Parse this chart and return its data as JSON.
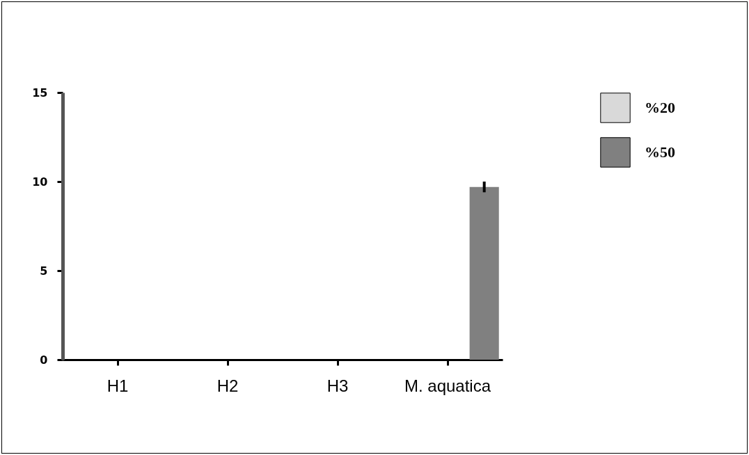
{
  "chart_data": {
    "type": "bar",
    "categories": [
      "H1",
      "H2",
      "H3",
      "M. aquatica"
    ],
    "series": [
      {
        "name": "%20",
        "color": "#d9d9d9",
        "values": [
          0,
          0,
          0,
          0
        ]
      },
      {
        "name": "%50",
        "color": "#808080",
        "values": [
          0,
          0,
          0,
          9.7
        ],
        "errors": [
          null,
          null,
          null,
          0.3
        ]
      }
    ],
    "ylim": [
      0,
      15
    ],
    "yticks": [
      0,
      5,
      10,
      15
    ],
    "grid": false,
    "legend": "top right"
  }
}
